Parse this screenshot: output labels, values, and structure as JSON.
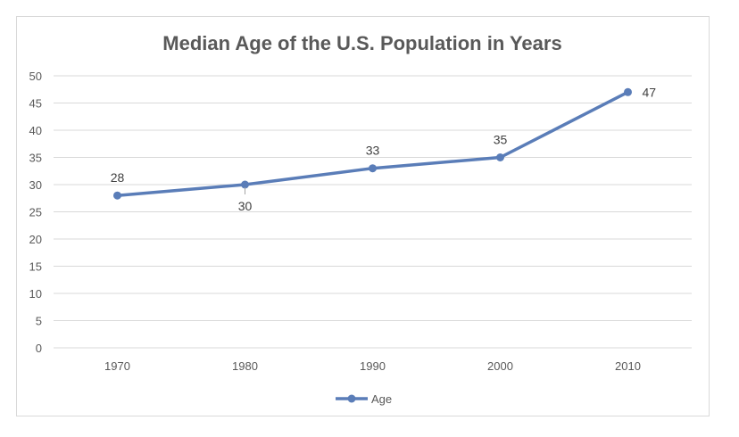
{
  "chart_data": {
    "type": "line",
    "title": "Median Age of the U.S. Population in Years",
    "xlabel": "",
    "ylabel": "",
    "categories": [
      "1970",
      "1980",
      "1990",
      "2000",
      "2010"
    ],
    "series": [
      {
        "name": "Age",
        "values": [
          28,
          30,
          33,
          35,
          47
        ],
        "color": "#5a7db8"
      }
    ],
    "ylim": [
      0,
      50
    ],
    "yticks": [
      "0",
      "5",
      "10",
      "15",
      "20",
      "25",
      "30",
      "35",
      "40",
      "45",
      "50"
    ],
    "data_labels": [
      "28",
      "30",
      "33",
      "35",
      "47"
    ],
    "grid": true,
    "legend_position": "bottom"
  }
}
